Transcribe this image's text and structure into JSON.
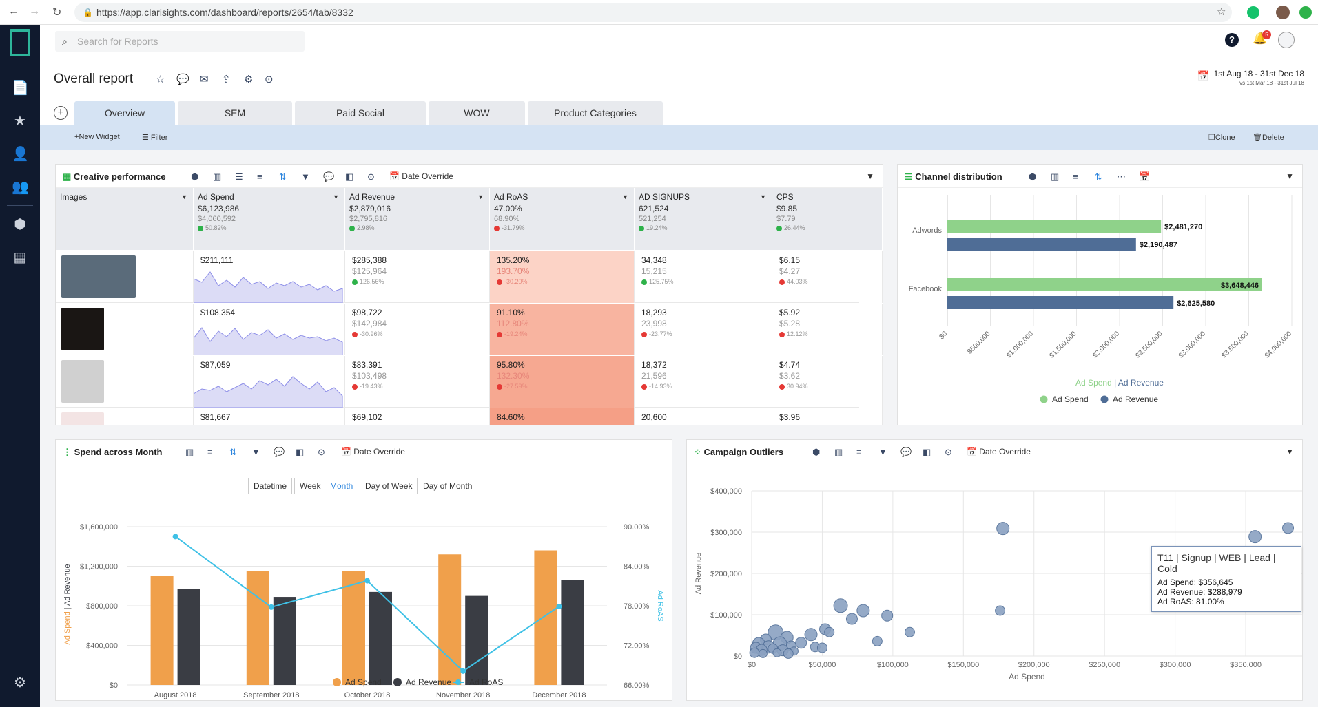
{
  "browser": {
    "url": "https://app.clarisights.com/dashboard/reports/2654/tab/8332"
  },
  "search": {
    "placeholder": "Search for Reports"
  },
  "notifications": {
    "count": "5"
  },
  "report": {
    "title": "Overall report",
    "date_range": "1st Aug 18 - 31st Dec 18",
    "compare_range": "vs 1st Mar 18 - 31st Jul 18"
  },
  "tabs": [
    "Overview",
    "SEM",
    "Paid Social",
    "WOW",
    "Product Categories"
  ],
  "actions": {
    "new_widget": "New Widget",
    "filter": "Filter",
    "clone": "Clone",
    "delete": "Delete"
  },
  "creative": {
    "title": "Creative performance",
    "date_override": "Date Override",
    "columns": [
      {
        "name": "Images"
      },
      {
        "name": "Ad Spend",
        "v1": "$6,123,986",
        "v2": "$4,060,592",
        "p": "50.82%",
        "up": true
      },
      {
        "name": "Ad Revenue",
        "v1": "$2,879,016",
        "v2": "$2,795,816",
        "p": "2.98%",
        "up": true
      },
      {
        "name": "Ad RoAS",
        "v1": "47.00%",
        "v2": "68.90%",
        "p": "-31.79%",
        "up": false
      },
      {
        "name": "AD SIGNUPS",
        "v1": "621,524",
        "v2": "521,254",
        "p": "19.24%",
        "up": true
      },
      {
        "name": "CPS",
        "v1": "$9.85",
        "v2": "$7.79",
        "p": "26.44%",
        "up": true
      }
    ],
    "rows": [
      {
        "spend": "$211,111",
        "rev": [
          "$285,388",
          "$125,964",
          "126.56%",
          true
        ],
        "roas": [
          "135.20%",
          "193.70%",
          "-30.20%",
          false
        ],
        "signups": [
          "34,348",
          "15,215",
          "125.75%",
          true
        ],
        "cps": [
          "$6.15",
          "$4.27",
          "44.03%",
          false
        ]
      },
      {
        "spend": "$108,354",
        "rev": [
          "$98,722",
          "$142,984",
          "-30.96%",
          false
        ],
        "roas": [
          "91.10%",
          "112.80%",
          "-19.24%",
          false
        ],
        "signups": [
          "18,293",
          "23,998",
          "-23.77%",
          false
        ],
        "cps": [
          "$5.92",
          "$5.28",
          "12.12%",
          false
        ]
      },
      {
        "spend": "$87,059",
        "rev": [
          "$83,391",
          "$103,498",
          "-19.43%",
          false
        ],
        "roas": [
          "95.80%",
          "132.30%",
          "-27.59%",
          false
        ],
        "signups": [
          "18,372",
          "21,596",
          "-14.93%",
          false
        ],
        "cps": [
          "$4.74",
          "$3.62",
          "30.94%",
          false
        ]
      },
      {
        "spend": "$81,667",
        "rev": [
          "$69,102",
          "",
          "",
          false
        ],
        "roas": [
          "84.60%",
          "",
          "",
          false
        ],
        "signups": [
          "20,600",
          "",
          "",
          false
        ],
        "cps": [
          "$3.96",
          "",
          "",
          false
        ]
      }
    ]
  },
  "channel": {
    "title": "Channel distribution",
    "axis_label": "Ad Spend | Ad Revenue",
    "legend": [
      "Ad Spend",
      "Ad Revenue"
    ]
  },
  "spend_month": {
    "title": "Spend across Month",
    "date_override": "Date Override",
    "segments": [
      "Datetime",
      "Week",
      "Month",
      "Day of Week",
      "Day of Month"
    ],
    "legend": [
      "Ad Spend",
      "Ad Revenue",
      "Ad RoAS"
    ]
  },
  "outliers": {
    "title": "Campaign Outliers",
    "date_override": "Date Override",
    "tooltip": {
      "title": "T11 | Signup | WEB | Lead | Cold",
      "l1": "Ad Spend: $356,645",
      "l2": "Ad Revenue: $288,979",
      "l3": "Ad RoAS: 81.00%"
    }
  },
  "chart_data": [
    {
      "type": "bar",
      "title": "Channel distribution",
      "orientation": "horizontal",
      "categories": [
        "Adwords",
        "Facebook"
      ],
      "series": [
        {
          "name": "Ad Spend",
          "values": [
            2481270,
            3648446
          ],
          "labels": [
            "$2,481,270",
            "$3,648,446"
          ],
          "color": "#8fd28a"
        },
        {
          "name": "Ad Revenue",
          "values": [
            2190487,
            2625580
          ],
          "labels": [
            "$2,190,487",
            "$2,625,580"
          ],
          "color": "#4f6d96"
        }
      ],
      "xlim": [
        0,
        4000000
      ],
      "xticks": [
        "$0",
        "$500,000",
        "$1,000,000",
        "$1,500,000",
        "$2,000,000",
        "$2,500,000",
        "$3,000,000",
        "$3,500,000",
        "$4,000,000"
      ],
      "xlabel": "Ad Spend | Ad Revenue",
      "legend_position": "bottom"
    },
    {
      "type": "bar",
      "title": "Spend across Month",
      "categories": [
        "August 2018",
        "September 2018",
        "October 2018",
        "November 2018",
        "December 2018"
      ],
      "series": [
        {
          "name": "Ad Spend",
          "values": [
            1100000,
            1150000,
            1150000,
            1320000,
            1360000
          ],
          "color": "#f0a04b"
        },
        {
          "name": "Ad Revenue",
          "values": [
            970000,
            890000,
            940000,
            900000,
            1060000
          ],
          "color": "#3a3d44"
        },
        {
          "name": "Ad RoAS",
          "type": "line",
          "axis": "right",
          "values": [
            88.5,
            77.8,
            81.8,
            68.1,
            77.9
          ],
          "color": "#3fc1e6"
        }
      ],
      "ylim": [
        0,
        1600000
      ],
      "yticks": [
        "$0",
        "$400,000",
        "$800,000",
        "$1,200,000",
        "$1,600,000"
      ],
      "y2lim": [
        66,
        90
      ],
      "y2ticks": [
        "66.00%",
        "72.00%",
        "78.00%",
        "84.00%",
        "90.00%"
      ],
      "ylabel": "Ad Spend | Ad Revenue",
      "y2label": "Ad RoAS",
      "legend_position": "bottom"
    },
    {
      "type": "scatter",
      "title": "Campaign Outliers",
      "xlabel": "Ad Spend",
      "ylabel": "Ad Revenue",
      "xlim": [
        0,
        390000
      ],
      "ylim": [
        0,
        400000
      ],
      "xticks": [
        "$0",
        "$50,000",
        "$100,000",
        "$150,000",
        "$200,000",
        "$250,000",
        "$300,000",
        "$350,000"
      ],
      "yticks": [
        "$0",
        "$100,000",
        "$200,000",
        "$300,000",
        "$400,000"
      ],
      "points": [
        [
          178000,
          309000,
          9
        ],
        [
          356645,
          288979,
          9
        ],
        [
          380000,
          310000,
          8
        ],
        [
          176000,
          110000,
          7
        ],
        [
          63000,
          122000,
          10
        ],
        [
          79000,
          110000,
          9
        ],
        [
          71000,
          90000,
          8
        ],
        [
          96000,
          98000,
          8
        ],
        [
          112000,
          58000,
          7
        ],
        [
          89000,
          36000,
          7
        ],
        [
          52000,
          65000,
          8
        ],
        [
          55000,
          58000,
          7
        ],
        [
          42000,
          52000,
          9
        ],
        [
          17000,
          57000,
          11
        ],
        [
          25000,
          45000,
          9
        ],
        [
          35000,
          32000,
          8
        ],
        [
          10000,
          40000,
          8
        ],
        [
          20000,
          30000,
          10
        ],
        [
          28000,
          25000,
          7
        ],
        [
          5000,
          30000,
          9
        ],
        [
          12000,
          22000,
          9
        ],
        [
          3000,
          20000,
          8
        ],
        [
          7000,
          15000,
          8
        ],
        [
          15000,
          18000,
          7
        ],
        [
          22000,
          14000,
          8
        ],
        [
          30000,
          12000,
          6
        ],
        [
          45000,
          22000,
          7
        ],
        [
          50000,
          20000,
          7
        ],
        [
          2000,
          8000,
          7
        ],
        [
          8000,
          6000,
          6
        ],
        [
          18000,
          8000,
          6
        ],
        [
          26000,
          6000,
          7
        ]
      ]
    }
  ]
}
